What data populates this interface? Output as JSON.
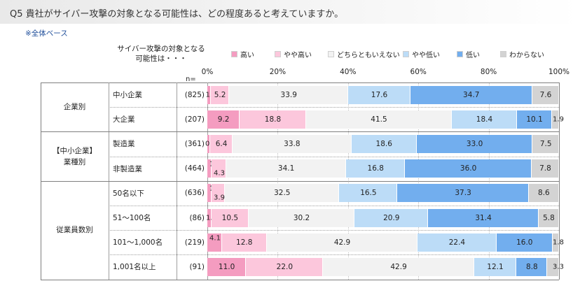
{
  "header": {
    "title": "Q5  貴社がサイバー攻撃の対象となる可能性は、どの程度あると考えていますか。",
    "base_note": "※全体ベース"
  },
  "legend": {
    "question_line1": "サイバー攻撃の対象となる",
    "question_line2": "可能性は・・・",
    "n_label": "n=",
    "items": [
      {
        "label": "高い",
        "color": "#f49cc0"
      },
      {
        "label": "やや高い",
        "color": "#fcc7dc"
      },
      {
        "label": "どちらともいえない",
        "color": "#f2f2f2"
      },
      {
        "label": "やや低い",
        "color": "#bcdcf7"
      },
      {
        "label": "低い",
        "color": "#72aeee"
      },
      {
        "label": "わからない",
        "color": "#d3d3d3"
      }
    ]
  },
  "chart_data": {
    "type": "bar",
    "orientation": "horizontal",
    "stacked": true,
    "percent": true,
    "xlim": [
      0,
      100
    ],
    "x_ticks": [
      "0%",
      "20%",
      "40%",
      "60%",
      "80%",
      "100%"
    ],
    "legend_placement": "top",
    "series_names": [
      "高い",
      "やや高い",
      "どちらともいえない",
      "やや低い",
      "低い",
      "わからない"
    ],
    "groups": [
      {
        "label_lines": [
          "企業別"
        ],
        "rows": [
          {
            "label": "中小企業",
            "n": "(825)",
            "values": [
              1.0,
              5.2,
              33.9,
              17.6,
              34.7,
              7.6
            ]
          },
          {
            "label": "大企業",
            "n": "(207)",
            "values": [
              9.2,
              18.8,
              41.5,
              18.4,
              10.1,
              1.9
            ]
          }
        ]
      },
      {
        "label_lines": [
          "【中小企業】",
          "業種別"
        ],
        "rows": [
          {
            "label": "製造業",
            "n": "(361)",
            "values": [
              0.8,
              6.4,
              33.8,
              18.6,
              33.0,
              7.5
            ]
          },
          {
            "label": "非製造業",
            "n": "(464)",
            "values": [
              1.1,
              4.3,
              34.1,
              16.8,
              36.0,
              7.8
            ]
          }
        ]
      },
      {
        "label_lines": [
          "従業員数別"
        ],
        "rows": [
          {
            "label": "50名以下",
            "n": "(636)",
            "values": [
              1.1,
              3.9,
              32.5,
              16.5,
              37.3,
              8.6
            ]
          },
          {
            "label": "51～100名",
            "n": "(86)",
            "values": [
              1.2,
              10.5,
              30.2,
              20.9,
              31.4,
              5.8
            ]
          },
          {
            "label": "101～1,000名",
            "n": "(219)",
            "values": [
              4.1,
              12.8,
              42.9,
              22.4,
              16.0,
              1.8
            ]
          },
          {
            "label": "1,001名以上",
            "n": "(91)",
            "values": [
              11.0,
              22.0,
              42.9,
              12.1,
              8.8,
              3.3
            ]
          }
        ]
      }
    ]
  }
}
